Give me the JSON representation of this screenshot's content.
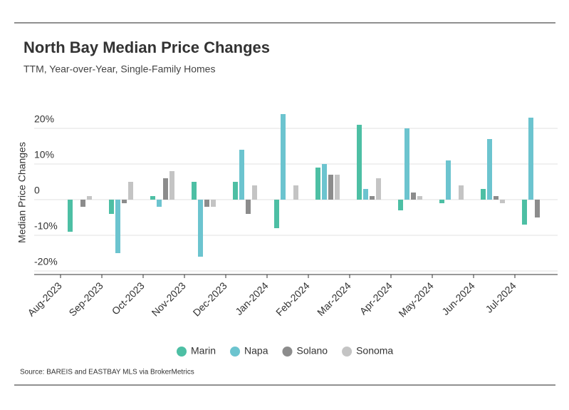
{
  "chart_data": {
    "type": "bar",
    "title": "North Bay Median Price Changes",
    "subtitle": "TTM, Year-over-Year, Single-Family Homes",
    "y_label": "Median Price Changes",
    "source": "Source:  BAREIS and EASTBAY MLS via BrokerMetrics",
    "categories": [
      "Aug-2023",
      "Sep-2023",
      "Oct-2023",
      "Nov-2023",
      "Dec-2023",
      "Jan-2024",
      "Feb-2024",
      "Mar-2024",
      "Apr-2024",
      "May-2024",
      "Jun-2024",
      "Jul-2024"
    ],
    "series": [
      {
        "name": "Marin",
        "color": "#4dbfa4",
        "values": [
          -9,
          -4,
          1,
          5,
          5,
          -8,
          9,
          21,
          -3,
          -1,
          3,
          -7
        ]
      },
      {
        "name": "Napa",
        "color": "#6cc4cf",
        "values": [
          0,
          -15,
          -2,
          -16,
          14,
          24,
          10,
          3,
          20,
          11,
          17,
          23
        ]
      },
      {
        "name": "Solano",
        "color": "#8c8c8c",
        "values": [
          -2,
          -1,
          6,
          -2,
          -4,
          0,
          7,
          1,
          2,
          0,
          1,
          -5
        ]
      },
      {
        "name": "Sonoma",
        "color": "#c4c4c4",
        "values": [
          1,
          5,
          8,
          -2,
          4,
          4,
          7,
          6,
          1,
          4,
          -1,
          0
        ]
      }
    ],
    "ylim": [
      -21,
      25
    ],
    "yticks": [
      {
        "value": -20,
        "label": "-20%"
      },
      {
        "value": -10,
        "label": "-10%"
      },
      0,
      {
        "value": 10,
        "label": "10%"
      },
      {
        "value": 20,
        "label": "20%"
      }
    ],
    "grid": true
  }
}
